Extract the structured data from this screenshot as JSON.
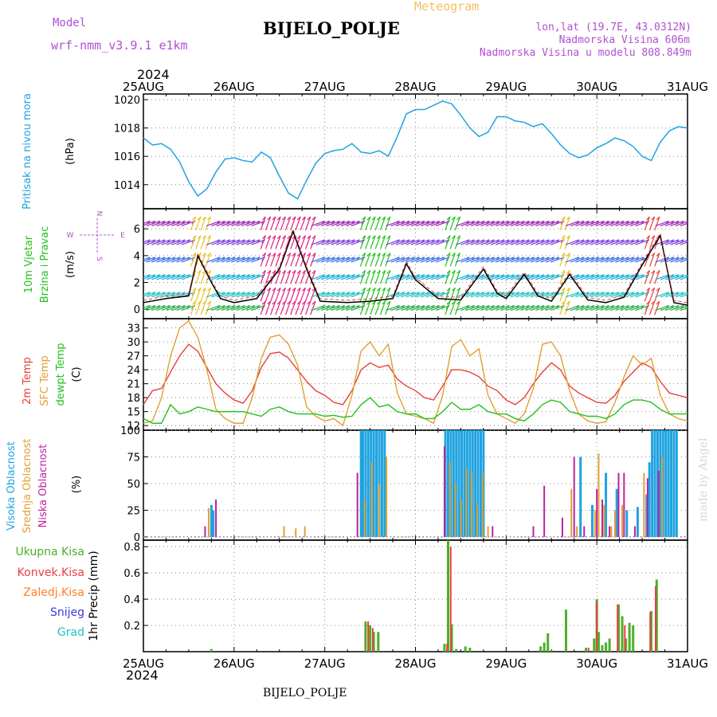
{
  "header": {
    "model_label": "Model",
    "model_name": "wrf-nmm_v3.9.1  e1km",
    "meteogram_label": "Meteogram",
    "station": "BIJELO_POLJE",
    "lonlat": "lon,lat (19.7E, 43.0312N)",
    "elevation": "Nadmorska Visina 606m",
    "model_elevation": "Nadmorska Visina u modelu 808.849m",
    "year": "2024",
    "footer_station": "BIJELO_POLJE",
    "credit": "made by Angel"
  },
  "colors": {
    "pressure": "#1fa3e0",
    "temp2m": "#e8403c",
    "sfc_temp": "#e0a030",
    "dewpt": "#22c01a",
    "wind_speed": "#000000",
    "high_cloud": "#1fa3e0",
    "mid_cloud": "#e0a030",
    "low_cloud": "#c020a0",
    "precip_total": "#4caf2a",
    "precip_conv": "#e8403c",
    "snow": "#3a3ad8",
    "graupel": "#20c0c0",
    "frozen_rain": "#ff7f27",
    "title_purple": "#b050d0",
    "meteogram_orange": "#f0c060"
  },
  "x_axis": {
    "top_labels": [
      "25AUG",
      "26AUG",
      "27AUG",
      "28AUG",
      "29AUG",
      "30AUG",
      "31AUG"
    ],
    "bottom_labels": [
      "25AUG",
      "26AUG",
      "27AUG",
      "28AUG",
      "29AUG",
      "30AUG",
      "31AUG"
    ]
  },
  "chart_data": [
    {
      "type": "line",
      "ylabel": "Pritisak na nivou mora",
      "unit": "(hPa)",
      "yticks": [
        1014,
        1016,
        1018,
        1020
      ],
      "ylim": [
        1012.3,
        1020.4
      ],
      "grid": true,
      "x_days": [
        0,
        0.1,
        0.2,
        0.3,
        0.4,
        0.5,
        0.6,
        0.7,
        0.8,
        0.9,
        1.0,
        1.1,
        1.2,
        1.3,
        1.4,
        1.5,
        1.6,
        1.7,
        1.8,
        1.9,
        2.0,
        2.1,
        2.2,
        2.3,
        2.4,
        2.5,
        2.6,
        2.7,
        2.8,
        2.9,
        3.0,
        3.1,
        3.2,
        3.3,
        3.4,
        3.5,
        3.6,
        3.7,
        3.8,
        3.9,
        4.0,
        4.1,
        4.2,
        4.3,
        4.4,
        4.5,
        4.6,
        4.7,
        4.8,
        4.9,
        5.0,
        5.1,
        5.2,
        5.3,
        5.4,
        5.5,
        5.6,
        5.7,
        5.8,
        5.9,
        6.0
      ],
      "series": [
        {
          "values": [
            1017.3,
            1016.8,
            1016.9,
            1016.5,
            1015.6,
            1014.2,
            1013.2,
            1013.7,
            1014.9,
            1015.8,
            1015.9,
            1015.7,
            1015.6,
            1016.3,
            1015.9,
            1014.6,
            1013.4,
            1013.0,
            1014.3,
            1015.5,
            1016.2,
            1016.4,
            1016.5,
            1016.9,
            1016.3,
            1016.2,
            1016.4,
            1016.0,
            1017.4,
            1019.0,
            1019.3,
            1019.3,
            1019.6,
            1019.9,
            1019.7,
            1018.9,
            1018.0,
            1017.4,
            1017.7,
            1018.8,
            1018.8,
            1018.5,
            1018.4,
            1018.1,
            1018.3,
            1017.6,
            1016.8,
            1016.2,
            1015.9,
            1016.1,
            1016.6,
            1016.9,
            1017.3,
            1017.1,
            1016.7,
            1016.0,
            1015.7,
            1017.0,
            1017.8,
            1018.1,
            1018.0
          ]
        }
      ]
    },
    {
      "type": "line",
      "ylabel": "10m Vjetar Brzina i Pravac",
      "unit": "(m/s)",
      "compass": [
        "N",
        "W",
        "E",
        "S"
      ],
      "yticks": [
        0,
        2,
        4,
        6
      ],
      "ylim": [
        -0.7,
        7.5
      ],
      "grid": true,
      "x_days": [
        0,
        0.25,
        0.5,
        0.6,
        0.75,
        0.85,
        1.0,
        1.25,
        1.5,
        1.65,
        1.8,
        1.95,
        2.25,
        2.5,
        2.75,
        2.9,
        3.0,
        3.25,
        3.5,
        3.75,
        3.9,
        4.0,
        4.2,
        4.35,
        4.5,
        4.7,
        4.9,
        5.1,
        5.3,
        5.5,
        5.7,
        5.85,
        6.0
      ],
      "series": [
        {
          "values": [
            0.5,
            0.8,
            1.0,
            4.0,
            2.0,
            0.8,
            0.5,
            0.8,
            3.0,
            5.8,
            3.0,
            0.6,
            0.5,
            0.6,
            0.8,
            3.4,
            2.2,
            0.8,
            0.7,
            3.0,
            1.2,
            0.8,
            2.6,
            1.0,
            0.6,
            2.6,
            0.7,
            0.5,
            0.9,
            3.3,
            5.5,
            0.5,
            0.3
          ]
        }
      ]
    },
    {
      "type": "line",
      "ylabel": "2m Temp / SFC Temp / dewpt Temp",
      "unit": "(C)",
      "yticks": [
        12,
        15,
        18,
        21,
        24,
        27,
        30,
        33
      ],
      "ylim": [
        11,
        35
      ],
      "grid": true,
      "x_days": [
        0,
        0.1,
        0.2,
        0.3,
        0.4,
        0.5,
        0.6,
        0.7,
        0.8,
        0.9,
        1.0,
        1.1,
        1.2,
        1.3,
        1.4,
        1.5,
        1.6,
        1.7,
        1.8,
        1.9,
        2.0,
        2.1,
        2.2,
        2.3,
        2.4,
        2.5,
        2.6,
        2.7,
        2.8,
        2.9,
        3.0,
        3.1,
        3.2,
        3.3,
        3.4,
        3.5,
        3.6,
        3.7,
        3.8,
        3.9,
        4.0,
        4.1,
        4.2,
        4.3,
        4.4,
        4.5,
        4.6,
        4.7,
        4.8,
        4.9,
        5.0,
        5.1,
        5.2,
        5.3,
        5.4,
        5.5,
        5.6,
        5.7,
        5.8,
        5.9,
        6.0
      ],
      "series": [
        {
          "name": "2m Temp",
          "values": [
            16.5,
            19.5,
            20.0,
            23.5,
            27.0,
            29.5,
            28.0,
            24.5,
            21.0,
            19.0,
            17.5,
            16.8,
            19.5,
            24.5,
            27.5,
            27.8,
            26.5,
            24.0,
            21.5,
            19.5,
            18.5,
            17.0,
            16.5,
            19.5,
            24.0,
            25.5,
            24.5,
            25.0,
            22.0,
            20.5,
            19.5,
            18.0,
            17.5,
            20.5,
            24.0,
            24.0,
            23.5,
            22.5,
            20.5,
            19.5,
            17.5,
            16.5,
            18.0,
            21.0,
            23.5,
            25.5,
            24.0,
            20.5,
            19.0,
            18.0,
            17.0,
            16.8,
            18.5,
            21.5,
            23.5,
            25.5,
            24.5,
            21.5,
            19.0,
            18.5,
            18.0
          ]
        },
        {
          "name": "SFC Temp",
          "values": [
            12.5,
            13.0,
            18.0,
            27.0,
            33.0,
            34.5,
            31.0,
            24.0,
            15.5,
            13.5,
            12.5,
            12.5,
            18.0,
            26.5,
            31.0,
            31.5,
            29.5,
            25.0,
            16.0,
            14.0,
            13.0,
            13.5,
            12.0,
            18.5,
            28.0,
            30.0,
            27.0,
            29.5,
            19.0,
            14.5,
            14.0,
            13.5,
            12.5,
            18.5,
            29.0,
            30.5,
            27.0,
            28.5,
            18.5,
            14.5,
            13.5,
            12.5,
            14.5,
            20.0,
            29.5,
            30.0,
            27.0,
            19.5,
            14.5,
            13.0,
            12.5,
            12.8,
            17.0,
            22.5,
            27.0,
            25.0,
            26.5,
            18.5,
            14.5,
            13.5,
            13.0
          ]
        },
        {
          "name": "dewpt Temp",
          "values": [
            13.5,
            12.5,
            12.5,
            16.5,
            14.5,
            15.0,
            16.0,
            15.5,
            15.0,
            15.0,
            15.0,
            15.0,
            14.5,
            14.0,
            15.5,
            16.0,
            15.0,
            14.5,
            14.5,
            14.5,
            14.0,
            14.2,
            13.8,
            14.0,
            16.5,
            18.0,
            16.0,
            16.5,
            15.0,
            14.5,
            14.5,
            13.5,
            13.5,
            15.0,
            17.0,
            15.5,
            15.5,
            16.5,
            15.0,
            14.5,
            14.5,
            13.5,
            13.0,
            14.5,
            16.5,
            17.5,
            17.0,
            15.0,
            14.5,
            14.0,
            14.0,
            13.5,
            14.5,
            16.5,
            17.5,
            17.5,
            17.0,
            15.5,
            14.5,
            14.5,
            14.5
          ]
        }
      ]
    },
    {
      "type": "bar",
      "ylabel": "Visoka Oblacnost / Srednja Oblacnost / Niska Oblacnost",
      "unit": "(%)",
      "yticks": [
        0,
        25,
        50,
        75,
        100
      ],
      "ylim": [
        -3,
        100
      ],
      "grid": true,
      "series": [
        {
          "name": "Visoka Oblacnost",
          "x_days": [
            0.75,
            0.77,
            2.4,
            2.42,
            2.45,
            2.48,
            2.51,
            2.54,
            2.57,
            2.6,
            2.63,
            2.66,
            3.33,
            3.36,
            3.39,
            3.42,
            3.45,
            3.48,
            3.51,
            3.54,
            3.57,
            3.6,
            3.63,
            3.66,
            3.69,
            3.72,
            3.75,
            4.82,
            4.95,
            5.1,
            5.22,
            5.33,
            5.45,
            5.55,
            5.58,
            5.61,
            5.64,
            5.67,
            5.7,
            5.73,
            5.76,
            5.79,
            5.82,
            5.85,
            5.88
          ],
          "values": [
            30,
            25,
            100,
            100,
            100,
            100,
            100,
            100,
            100,
            100,
            100,
            100,
            100,
            100,
            100,
            100,
            100,
            100,
            100,
            100,
            100,
            100,
            100,
            100,
            100,
            100,
            100,
            75,
            30,
            60,
            45,
            25,
            28,
            40,
            70,
            100,
            100,
            100,
            100,
            100,
            100,
            100,
            100,
            100,
            100
          ]
        },
        {
          "name": "Srednja Oblacnost",
          "x_days": [
            0.72,
            1.55,
            1.68,
            1.78,
            2.44,
            2.52,
            2.6,
            2.68,
            3.38,
            3.44,
            3.5,
            3.56,
            3.62,
            3.68,
            3.74,
            3.8,
            4.72,
            4.78,
            4.98,
            5.02,
            5.08,
            5.16,
            5.2,
            5.28,
            5.52,
            5.72
          ],
          "values": [
            27,
            10,
            8,
            10,
            35,
            70,
            50,
            75,
            70,
            50,
            35,
            65,
            60,
            30,
            60,
            10,
            45,
            10,
            25,
            78,
            30,
            10,
            25,
            30,
            60,
            75
          ]
        },
        {
          "name": "Niska Oblacnost",
          "x_days": [
            0.68,
            0.8,
            2.36,
            3.32,
            3.85,
            4.3,
            4.42,
            4.62,
            4.75,
            4.86,
            5.0,
            5.06,
            5.14,
            5.24,
            5.3,
            5.42,
            5.56,
            5.68
          ],
          "values": [
            10,
            35,
            60,
            85,
            10,
            10,
            48,
            18,
            75,
            10,
            45,
            35,
            10,
            60,
            60,
            10,
            55,
            62
          ]
        }
      ]
    },
    {
      "type": "bar",
      "ylabel": "1hr Precip",
      "unit": "(mm)",
      "legend": [
        "Ukupna Kisa",
        "Konvek.Kisa",
        "Zaledj.Kisa",
        "Snijeg",
        "Grad"
      ],
      "yticks": [
        0.2,
        0.4,
        0.6,
        0.8
      ],
      "ylim": [
        0,
        0.85
      ],
      "grid": true,
      "series": [
        {
          "name": "Ukupna Kisa",
          "x_days": [
            0.75,
            2.45,
            2.5,
            2.54,
            2.59,
            3.32,
            3.36,
            3.4,
            3.45,
            3.55,
            3.6,
            4.38,
            4.42,
            4.46,
            4.5,
            4.66,
            4.88,
            4.97,
            5.0,
            5.02,
            5.06,
            5.1,
            5.14,
            5.24,
            5.28,
            5.32,
            5.36,
            5.4,
            5.6,
            5.66
          ],
          "values": [
            0.02,
            0.23,
            0.2,
            0.15,
            0.15,
            0.06,
            0.85,
            0.21,
            0.02,
            0.04,
            0.03,
            0.04,
            0.07,
            0.14,
            0.01,
            0.32,
            0.03,
            0.1,
            0.4,
            0.15,
            0.05,
            0.07,
            0.1,
            0.36,
            0.27,
            0.1,
            0.22,
            0.2,
            0.31,
            0.55
          ]
        },
        {
          "name": "Konvek.Kisa",
          "x_days": [
            2.47,
            2.52,
            3.34,
            3.38,
            4.9,
            4.99,
            5.22,
            5.3,
            5.58,
            5.64
          ],
          "values": [
            0.23,
            0.18,
            0.06,
            0.8,
            0.03,
            0.38,
            0.36,
            0.2,
            0.3,
            0.5
          ]
        }
      ]
    }
  ]
}
